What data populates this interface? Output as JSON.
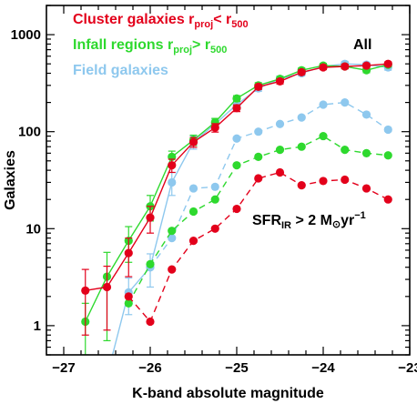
{
  "chart_data": {
    "type": "line",
    "xlabel": "K-band absolute magnitude",
    "ylabel": "Galaxies",
    "xlim": [
      -27.2,
      -23.0
    ],
    "ylim": [
      0.5,
      2000
    ],
    "y_scale": "log",
    "x_ticks": [
      -27,
      -26,
      -25,
      -24,
      -23
    ],
    "x_tick_labels": [
      "−27",
      "−26",
      "−25",
      "−24",
      "−23"
    ],
    "y_ticks": [
      1,
      10,
      100,
      1000
    ],
    "y_tick_labels": [
      "1",
      "10",
      "100",
      "1000"
    ],
    "legend": {
      "placement": "top-left",
      "entries": [
        {
          "main": "Cluster galaxies r",
          "sub1": "proj",
          "mid": "< r",
          "sub2": "500",
          "color": "#e3001b"
        },
        {
          "main": "Infall regions r",
          "sub1": "proj",
          "mid": "> r",
          "sub2": "500",
          "color": "#2ed92e"
        },
        {
          "main": "Field galaxies",
          "sub1": "",
          "mid": "",
          "sub2": "",
          "color": "#8ec8ee"
        }
      ]
    },
    "annotations": {
      "all": "All",
      "sfr_pre": "SFR",
      "sfr_sub": "IR",
      "sfr_mid": " > 2 M",
      "sfr_sun": "⊙",
      "sfr_post": "yr",
      "sfr_sup": "−1"
    },
    "series": [
      {
        "key": "field_all",
        "color": "#8ec8ee",
        "style": "solid",
        "errors": true,
        "x": [
          -26.5,
          -26.25,
          -26.0,
          -25.75,
          -25.5,
          -25.25,
          -25.0,
          -24.75,
          -24.5,
          -24.25,
          -24.0,
          -23.75,
          -23.5,
          -23.25
        ],
        "y": [
          0.3,
          2.2,
          4.0,
          30,
          78,
          120,
          190,
          280,
          350,
          400,
          470,
          500,
          490,
          460
        ],
        "err": [
          0,
          0.9,
          1.5,
          8,
          12,
          15,
          18,
          20,
          25,
          25,
          30,
          30,
          30,
          30
        ]
      },
      {
        "key": "infall_all",
        "color": "#2ed92e",
        "style": "solid",
        "errors": true,
        "x": [
          -26.75,
          -26.5,
          -26.25,
          -26.0,
          -25.75,
          -25.5,
          -25.25,
          -25.0,
          -24.75,
          -24.5,
          -24.25,
          -24.0,
          -23.75,
          -23.5,
          -23.25
        ],
        "y": [
          1.1,
          3.2,
          7.5,
          17,
          55,
          82,
          125,
          220,
          300,
          350,
          430,
          480,
          470,
          430,
          490
        ],
        "err": [
          0.6,
          2.5,
          3,
          5,
          8,
          10,
          12,
          15,
          20,
          20,
          25,
          25,
          25,
          25,
          25
        ]
      },
      {
        "key": "cluster_all",
        "color": "#e3001b",
        "style": "solid",
        "errors": true,
        "x": [
          -26.75,
          -26.5,
          -26.25,
          -26.0,
          -25.75,
          -25.5,
          -25.25,
          -25.0,
          -24.75,
          -24.5,
          -24.25,
          -24.0,
          -23.75,
          -23.5,
          -23.25
        ],
        "y": [
          2.3,
          2.5,
          5.6,
          13,
          45,
          78,
          110,
          175,
          290,
          330,
          410,
          460,
          470,
          480,
          500
        ],
        "err": [
          1.5,
          1.6,
          2.4,
          4,
          7,
          9,
          11,
          14,
          18,
          20,
          22,
          24,
          25,
          25,
          25
        ]
      },
      {
        "key": "field_sfr",
        "color": "#8ec8ee",
        "style": "dashed",
        "errors": false,
        "x": [
          -26.0,
          -25.75,
          -25.5,
          -25.25,
          -25.0,
          -24.75,
          -24.5,
          -24.25,
          -24.0,
          -23.75,
          -23.5,
          -23.25
        ],
        "y": [
          4.0,
          8.0,
          26,
          27,
          85,
          100,
          120,
          140,
          190,
          200,
          150,
          105
        ]
      },
      {
        "key": "infall_sfr",
        "color": "#2ed92e",
        "style": "dashed",
        "errors": false,
        "x": [
          -26.25,
          -26.0,
          -25.75,
          -25.5,
          -25.25,
          -25.0,
          -24.75,
          -24.5,
          -24.25,
          -24.0,
          -23.75,
          -23.5,
          -23.25
        ],
        "y": [
          1.7,
          4.3,
          9.5,
          15,
          20,
          45,
          55,
          65,
          70,
          90,
          65,
          60,
          57
        ]
      },
      {
        "key": "cluster_sfr",
        "color": "#e3001b",
        "style": "dashed",
        "errors": false,
        "x": [
          -26.25,
          -26.0,
          -25.75,
          -25.5,
          -25.25,
          -25.0,
          -24.75,
          -24.5,
          -24.25,
          -24.0,
          -23.75,
          -23.5,
          -23.25
        ],
        "y": [
          2.0,
          1.1,
          3.8,
          7.5,
          10,
          16,
          33,
          38,
          28,
          31,
          32,
          26,
          20
        ]
      }
    ]
  }
}
